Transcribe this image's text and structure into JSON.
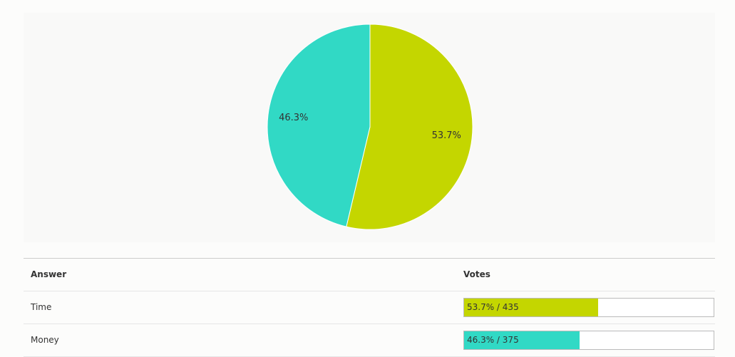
{
  "chart_data": {
    "type": "pie",
    "categories": [
      "Time",
      "Money"
    ],
    "values": [
      53.7,
      46.3
    ],
    "value_labels": [
      "53.7%",
      "46.3%"
    ],
    "colors": [
      "#c4d600",
      "#31d9c5"
    ]
  },
  "table": {
    "headers": [
      "Answer",
      "Votes"
    ],
    "rows": [
      {
        "votes_label": "53.7% / 435"
      },
      {
        "votes_label": "46.3% / 375"
      }
    ]
  }
}
